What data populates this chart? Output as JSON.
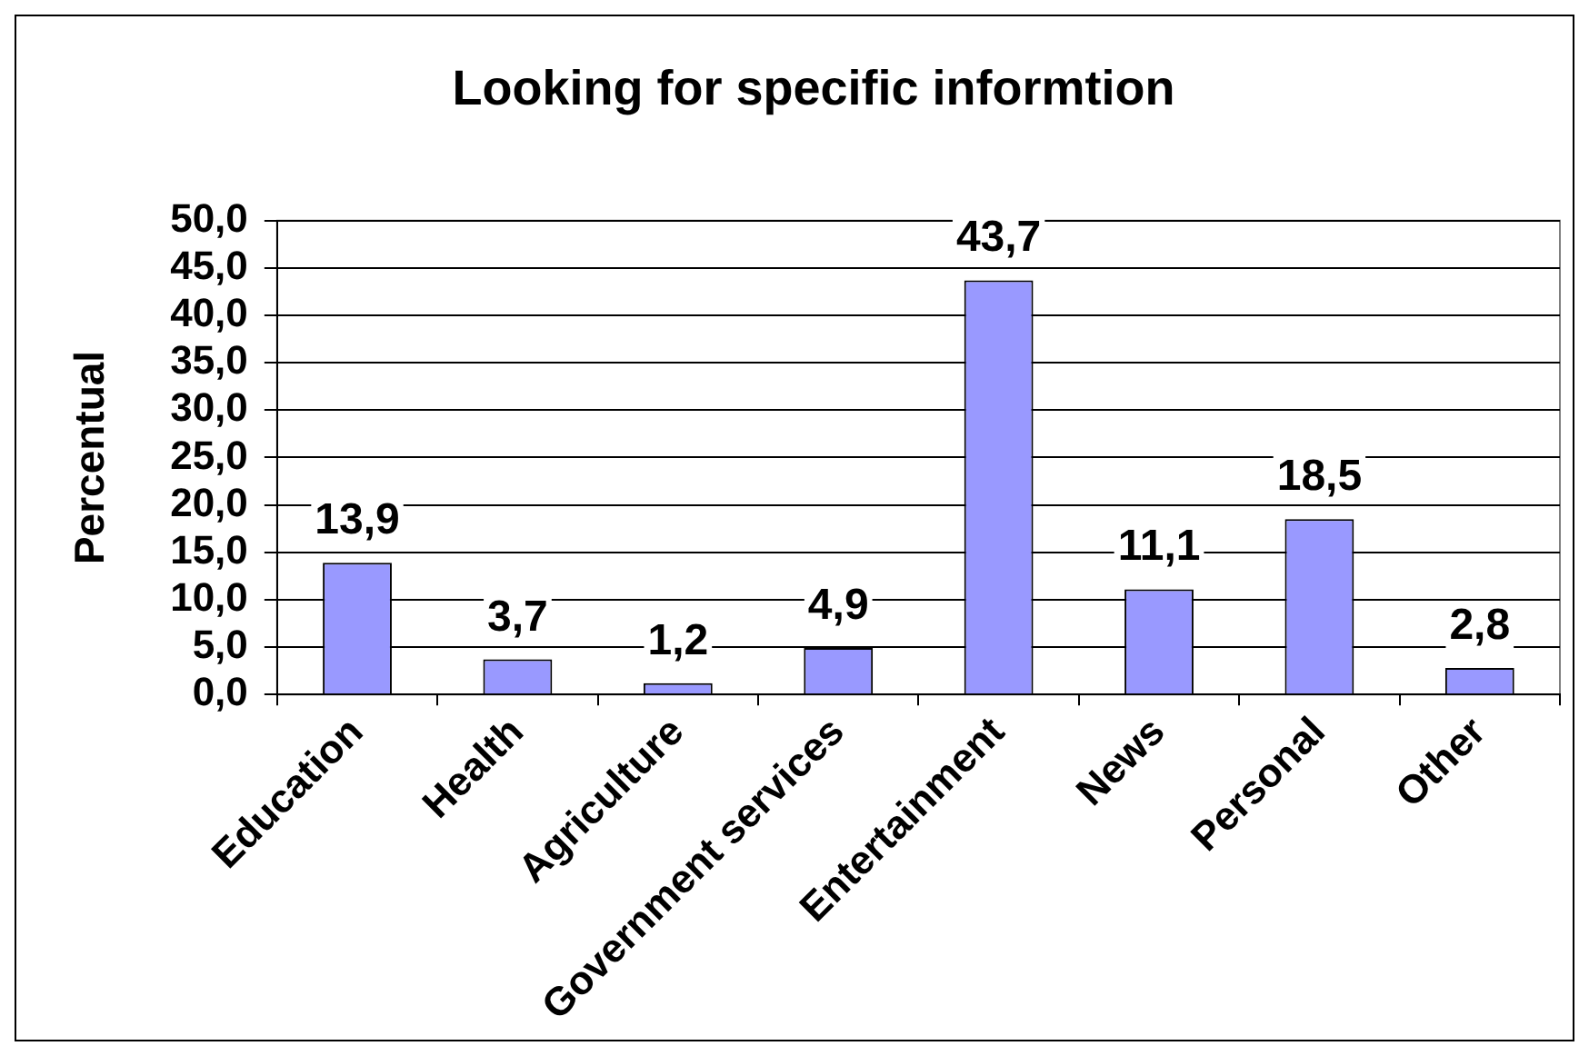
{
  "chart_data": {
    "type": "bar",
    "title": "Looking for specific informtion",
    "ylabel": "Percentual",
    "categories": [
      "Education",
      "Health",
      "Agriculture",
      "Government services",
      "Entertainment",
      "News",
      "Personal",
      "Other"
    ],
    "values": [
      13.9,
      3.7,
      1.2,
      4.9,
      43.7,
      11.1,
      18.5,
      2.8
    ],
    "value_labels": [
      "13,9",
      "3,7",
      "1,2",
      "4,9",
      "43,7",
      "11,1",
      "18,5",
      "2,8"
    ],
    "color": "#9999ff",
    "ylim": [
      0,
      50
    ],
    "yticks": [
      {
        "value": 0,
        "label": "0,0"
      },
      {
        "value": 5,
        "label": "5,0"
      },
      {
        "value": 10,
        "label": "10,0"
      },
      {
        "value": 15,
        "label": "15,0"
      },
      {
        "value": 20,
        "label": "20,0"
      },
      {
        "value": 25,
        "label": "25,0"
      },
      {
        "value": 30,
        "label": "30,0"
      },
      {
        "value": 35,
        "label": "35,0"
      },
      {
        "value": 40,
        "label": "40,0"
      },
      {
        "value": 45,
        "label": "45,0"
      },
      {
        "value": 50,
        "label": "50,0"
      }
    ],
    "grid": "y"
  }
}
